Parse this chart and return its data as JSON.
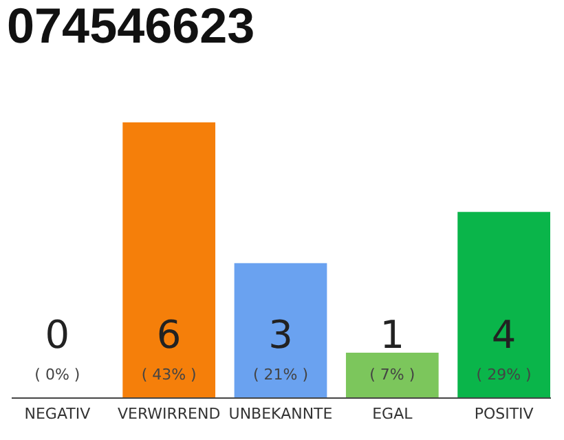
{
  "chart_data": {
    "type": "bar",
    "title": "074546623",
    "categories": [
      "NEGATIV",
      "VERWIRREND",
      "UNBEKANNTE",
      "EGAL",
      "POSITIV"
    ],
    "values": [
      0,
      43,
      21,
      7,
      29
    ],
    "colors": [
      "#e0e0e0",
      "#f57f0a",
      "#6aa2f0",
      "#7cc65c",
      "#0ab54a"
    ],
    "value_labels": [
      "( 0% )",
      "( 43% )",
      "( 21% )",
      "( 7% )",
      "( 29% )"
    ],
    "annotations": [
      "0",
      "6",
      "3",
      "1",
      "4"
    ]
  }
}
